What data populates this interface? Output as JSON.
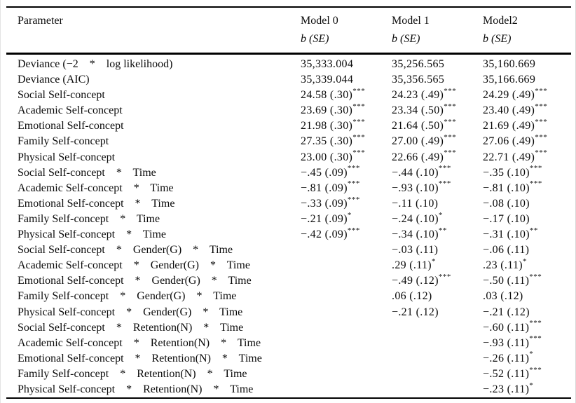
{
  "page": {
    "background": "#ffffff",
    "text_color": "#0b0b0b",
    "rule_color": "#000000"
  },
  "table": {
    "columns": [
      "Parameter",
      "Model 0",
      "Model 1",
      "Model2"
    ],
    "subheader": "b (SE)",
    "rows": [
      {
        "param": "Deviance (−2    *    log likelihood)",
        "m0": "35,333.004",
        "m0sig": "",
        "m1": "35,256.565",
        "m1sig": "",
        "m2": "35,160.669",
        "m2sig": ""
      },
      {
        "param": "Deviance (AIC)",
        "m0": "35,339.044",
        "m0sig": "",
        "m1": "35,356.565",
        "m1sig": "",
        "m2": "35,166.669",
        "m2sig": ""
      },
      {
        "param": "Social Self-concept",
        "m0": "24.58 (.30)",
        "m0sig": "***",
        "m1": "24.23 (.49)",
        "m1sig": "***",
        "m2": "24.29 (.49)",
        "m2sig": "***"
      },
      {
        "param": "Academic Self-concept",
        "m0": "23.69 (.30)",
        "m0sig": "***",
        "m1": "23.34 (.50)",
        "m1sig": "***",
        "m2": "23.40 (.49)",
        "m2sig": "***"
      },
      {
        "param": "Emotional Self-concept",
        "m0": "21.98 (.30)",
        "m0sig": "***",
        "m1": "21.64 (.50)",
        "m1sig": "***",
        "m2": "21.69 (.49)",
        "m2sig": "***"
      },
      {
        "param": "Family Self-concept",
        "m0": "27.35 (.30)",
        "m0sig": "***",
        "m1": "27.00 (.49)",
        "m1sig": "***",
        "m2": "27.06 (.49)",
        "m2sig": "***"
      },
      {
        "param": "Physical Self-concept",
        "m0": "23.00 (.30)",
        "m0sig": "***",
        "m1": "22.66 (.49)",
        "m1sig": "***",
        "m2": "22.71 (.49)",
        "m2sig": "***"
      },
      {
        "param": "Social Self-concept    *    Time",
        "m0": "−.45 (.09)",
        "m0sig": "***",
        "m1": "−.44 (.10)",
        "m1sig": "***",
        "m2": "−.35 (.10)",
        "m2sig": "***"
      },
      {
        "param": "Academic Self-concept    *    Time",
        "m0": "−.81 (.09)",
        "m0sig": "***",
        "m1": "−.93 (.10)",
        "m1sig": "***",
        "m2": "−.81 (.10)",
        "m2sig": "***"
      },
      {
        "param": "Emotional Self-concept    *    Time",
        "m0": "−.33 (.09)",
        "m0sig": "***",
        "m1": "−.11 (.10)",
        "m1sig": "",
        "m2": "−.08 (.10)",
        "m2sig": ""
      },
      {
        "param": "Family Self-concept    *    Time",
        "m0": "−.21 (.09)",
        "m0sig": "*",
        "m1": "−.24 (.10)",
        "m1sig": "*",
        "m2": "−.17 (.10)",
        "m2sig": ""
      },
      {
        "param": "Physical Self-concept    *    Time",
        "m0": "−.42 (.09)",
        "m0sig": "***",
        "m1": "−.34 (.10)",
        "m1sig": "**",
        "m2": "−.31 (.10)",
        "m2sig": "**"
      },
      {
        "param": "Social Self-concept    *    Gender(G)    *    Time",
        "m0": "",
        "m0sig": "",
        "m1": "−.03 (.11)",
        "m1sig": "",
        "m2": "−.06 (.11)",
        "m2sig": ""
      },
      {
        "param": "Academic Self-concept    *    Gender(G)    *    Time",
        "m0": "",
        "m0sig": "",
        "m1": ".29 (.11)",
        "m1sig": "*",
        "m2": ".23 (.11)",
        "m2sig": "*"
      },
      {
        "param": "Emotional Self-concept    *    Gender(G)    *    Time",
        "m0": "",
        "m0sig": "",
        "m1": "−.49 (.12)",
        "m1sig": "***",
        "m2": "−.50 (.11)",
        "m2sig": "***"
      },
      {
        "param": "Family Self-concept    *    Gender(G)    *    Time",
        "m0": "",
        "m0sig": "",
        "m1": ".06 (.12)",
        "m1sig": "",
        "m2": ".03 (.12)",
        "m2sig": ""
      },
      {
        "param": "Physical Self-concept    *    Gender(G)    *    Time",
        "m0": "",
        "m0sig": "",
        "m1": "−.21 (.12)",
        "m1sig": "",
        "m2": "−.21 (.12)",
        "m2sig": ""
      },
      {
        "param": "Social Self-concept    *    Retention(N)    *    Time",
        "m0": "",
        "m0sig": "",
        "m1": "",
        "m1sig": "",
        "m2": "−.60 (.11)",
        "m2sig": "***"
      },
      {
        "param": "Academic Self-concept    *    Retention(N)    *    Time",
        "m0": "",
        "m0sig": "",
        "m1": "",
        "m1sig": "",
        "m2": "−.93 (.11)",
        "m2sig": "***"
      },
      {
        "param": "Emotional Self-concept    *    Retention(N)    *    Time",
        "m0": "",
        "m0sig": "",
        "m1": "",
        "m1sig": "",
        "m2": "−.26 (.11)",
        "m2sig": "*"
      },
      {
        "param": "Family Self-concept    *    Retention(N)    *    Time",
        "m0": "",
        "m0sig": "",
        "m1": "",
        "m1sig": "",
        "m2": "−.52 (.11)",
        "m2sig": "***"
      },
      {
        "param": "Physical Self-concept    *    Retention(N)    *    Time",
        "m0": "",
        "m0sig": "",
        "m1": "",
        "m1sig": "",
        "m2": "−.23 (.11)",
        "m2sig": "*"
      }
    ]
  }
}
